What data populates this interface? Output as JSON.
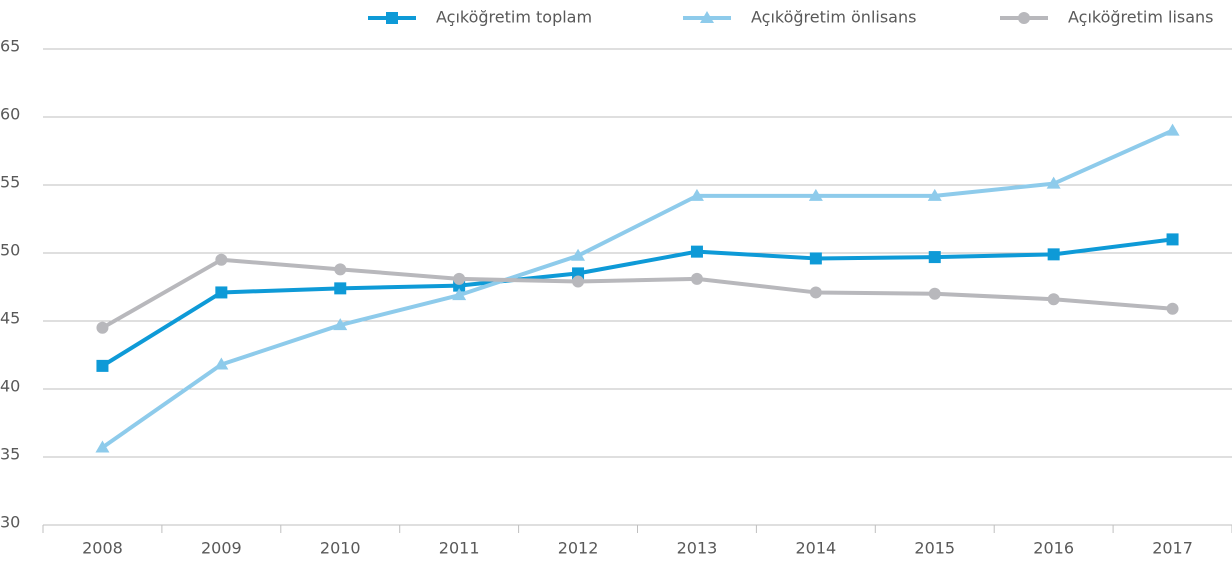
{
  "chart_data": {
    "type": "line",
    "categories": [
      "2008",
      "2009",
      "2010",
      "2011",
      "2012",
      "2013",
      "2014",
      "2015",
      "2016",
      "2017"
    ],
    "series": [
      {
        "name": "Açıköğretim toplam",
        "color": "#0e9ad7",
        "marker": "square",
        "values": [
          41.7,
          47.1,
          47.4,
          47.6,
          48.5,
          50.1,
          49.6,
          49.7,
          49.9,
          51.0
        ]
      },
      {
        "name": "Açıköğretim önlisans",
        "color": "#8ecbeb",
        "marker": "triangle",
        "values": [
          35.7,
          41.8,
          44.7,
          46.9,
          49.8,
          54.2,
          54.2,
          54.2,
          55.1,
          59.0
        ]
      },
      {
        "name": "Açıköğretim lisans",
        "color": "#b8b8bc",
        "marker": "circle",
        "values": [
          44.5,
          49.5,
          48.8,
          48.1,
          47.9,
          48.1,
          47.1,
          47.0,
          46.6,
          45.9
        ]
      }
    ],
    "ylim": [
      30,
      65
    ],
    "yticks": [
      30,
      35,
      40,
      45,
      50,
      55,
      60,
      65
    ],
    "grid": true,
    "legend": "top"
  }
}
